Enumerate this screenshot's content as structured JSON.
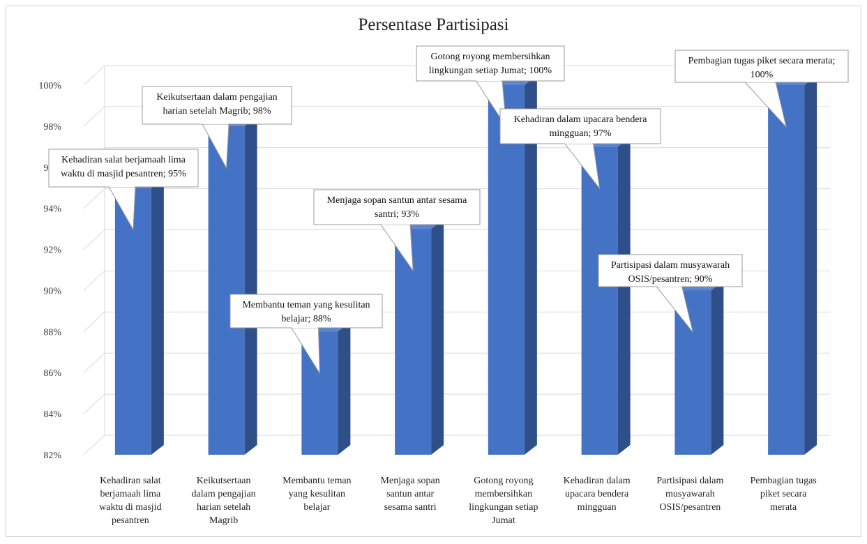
{
  "chart_data": {
    "type": "bar",
    "title": "Persentase Partisipasi",
    "xlabel": "",
    "ylabel": "",
    "ylim": [
      82,
      100
    ],
    "y_ticks": [
      "82%",
      "84%",
      "86%",
      "88%",
      "90%",
      "92%",
      "94%",
      "96%",
      "98%",
      "100%"
    ],
    "grid": true,
    "categories": [
      "Kehadiran salat berjamaah lima waktu di masjid pesantren",
      "Keikutsertaan dalam pengajian harian setelah Magrib",
      "Membantu teman yang kesulitan belajar",
      "Menjaga sopan santun antar sesama santri",
      "Gotong royong membersihkan lingkungan setiap Jumat",
      "Kehadiran dalam upacara bendera mingguan",
      "Partisipasi dalam musyawarah OSIS/pesantren",
      "Pembagian tugas piket secara merata"
    ],
    "values": [
      95,
      98,
      88,
      93,
      100,
      97,
      90,
      100
    ],
    "data_labels": [
      "Kehadiran salat berjamaah lima waktu di masjid pesantren; 95%",
      "Keikutsertaan dalam pengajian harian setelah Magrib; 98%",
      "Membantu teman yang kesulitan belajar; 88%",
      "Menjaga sopan santun antar sesama santri; 93%",
      "Gotong royong membersihkan lingkungan setiap Jumat; 100%",
      "Kehadiran dalam upacara bendera mingguan; 97%",
      "Partisipasi dalam musyawarah OSIS/pesantren; 90%",
      "Pembagian tugas piket secara merata; 100%"
    ],
    "colors": {
      "front": "#4472c4",
      "side": "#2f4f8a",
      "top": "#5b85d0",
      "grid": "#d9d9d9"
    }
  }
}
